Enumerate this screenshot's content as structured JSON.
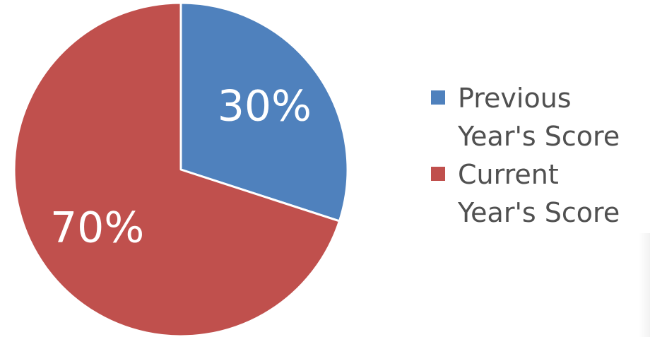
{
  "chart_data": {
    "type": "pie",
    "slices": [
      {
        "name": "Previous Year's Score",
        "value": 30,
        "label": "30%",
        "color": "#4f81bd"
      },
      {
        "name": "Current Year's Score",
        "value": 70,
        "label": "70%",
        "color": "#c0504d"
      }
    ],
    "start_angle_deg": 0,
    "direction": "clockwise",
    "legend_placement": "right"
  },
  "legend": {
    "items": [
      {
        "label": "Previous Year's Score",
        "color": "#4f81bd"
      },
      {
        "label": "Current Year's Score",
        "color": "#c0504d"
      }
    ]
  }
}
